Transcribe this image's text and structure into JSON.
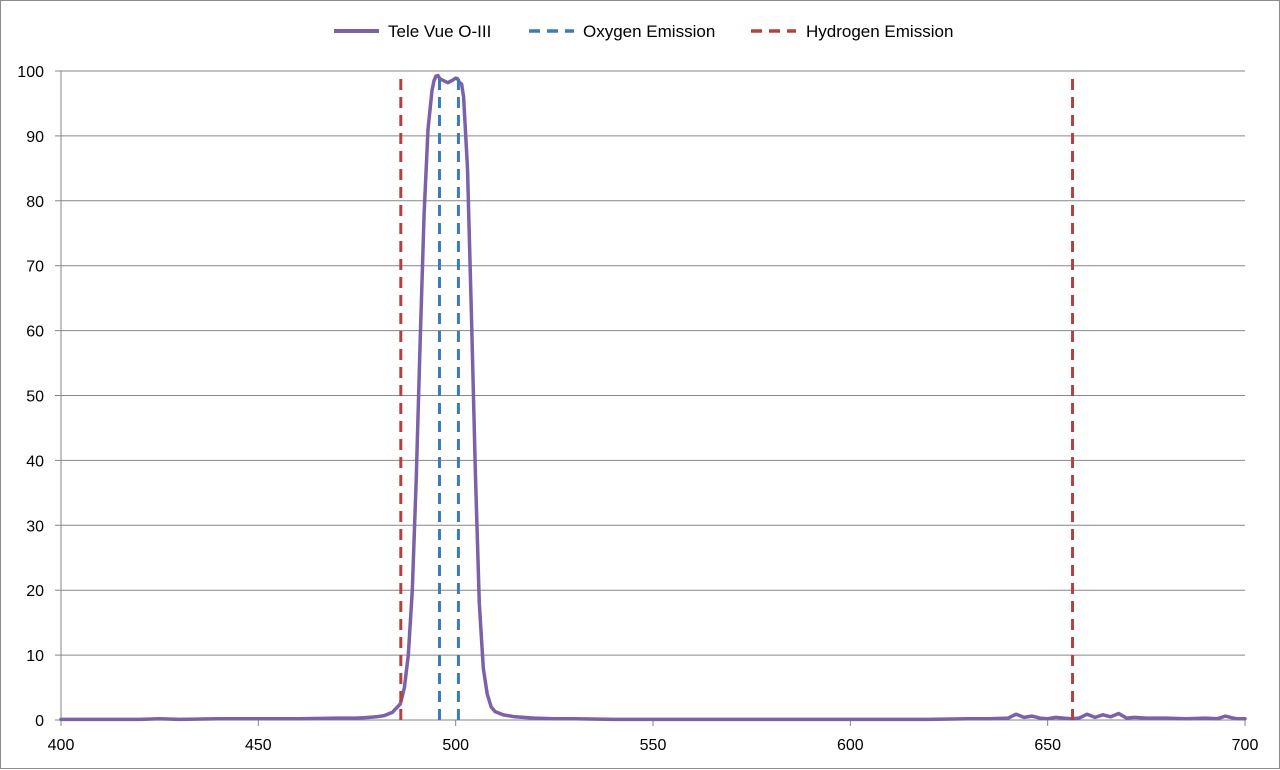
{
  "chart_data": {
    "type": "line",
    "title": "",
    "xlabel": "",
    "ylabel": "",
    "xlim": [
      400,
      700
    ],
    "ylim": [
      0,
      100
    ],
    "x_ticks": [
      400,
      450,
      500,
      550,
      600,
      650,
      700
    ],
    "y_ticks": [
      0,
      10,
      20,
      30,
      40,
      50,
      60,
      70,
      80,
      90,
      100
    ],
    "grid": "horizontal",
    "legend_position": "top",
    "series": [
      {
        "name": "Tele Vue O-III",
        "style": "solid",
        "color": "#7b61a8",
        "x": [
          400,
          410,
          420,
          425,
          430,
          440,
          450,
          460,
          470,
          475,
          478,
          480,
          482,
          484,
          486,
          487,
          488,
          489,
          490,
          491,
          492,
          493,
          494,
          494.5,
          495,
          495.5,
          496,
          497,
          498,
          499,
          500,
          500.5,
          501,
          501.5,
          502,
          503,
          504,
          505,
          506,
          507,
          508,
          509,
          510,
          512,
          515,
          520,
          525,
          530,
          540,
          550,
          560,
          570,
          580,
          590,
          600,
          610,
          620,
          630,
          635,
          640,
          642,
          644,
          646,
          648,
          650,
          652,
          654,
          656,
          658,
          660,
          662,
          664,
          666,
          668,
          670,
          672,
          675,
          680,
          685,
          690,
          693,
          695,
          697,
          698,
          700
        ],
        "values": [
          0.1,
          0.1,
          0.1,
          0.2,
          0.1,
          0.2,
          0.2,
          0.2,
          0.3,
          0.3,
          0.4,
          0.5,
          0.7,
          1.2,
          2.5,
          5,
          10,
          20,
          37,
          58,
          78,
          91,
          97,
          98.5,
          99.2,
          99.3,
          98.8,
          98.5,
          98.2,
          98.5,
          98.9,
          98.8,
          98.2,
          98,
          96,
          85,
          62,
          38,
          18,
          8,
          4,
          2,
          1.3,
          0.8,
          0.5,
          0.3,
          0.2,
          0.2,
          0.1,
          0.1,
          0.1,
          0.1,
          0.1,
          0.1,
          0.1,
          0.1,
          0.1,
          0.2,
          0.2,
          0.3,
          0.9,
          0.4,
          0.6,
          0.3,
          0.2,
          0.4,
          0.3,
          0.2,
          0.3,
          0.9,
          0.4,
          0.8,
          0.5,
          1.0,
          0.3,
          0.4,
          0.3,
          0.3,
          0.2,
          0.3,
          0.2,
          0.6,
          0.3,
          0.2,
          0.2
        ]
      },
      {
        "name": "Oxygen Emission",
        "style": "dashed",
        "color": "#3d7ab8",
        "x": [
          495.9,
          500.7
        ],
        "values": [
          99,
          99
        ]
      },
      {
        "name": "Hydrogen Emission",
        "style": "dashed",
        "color": "#b5403e",
        "x": [
          486.1,
          656.3
        ],
        "values": [
          99,
          99
        ]
      }
    ]
  }
}
